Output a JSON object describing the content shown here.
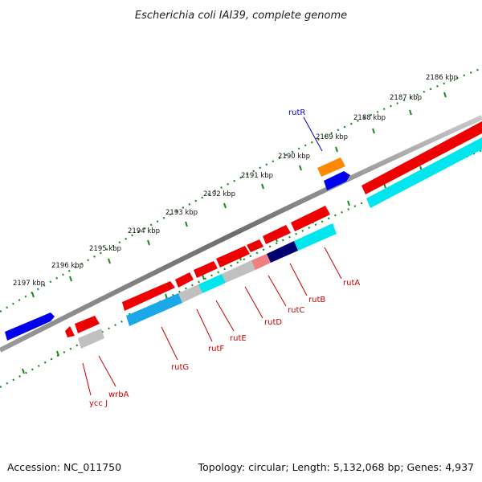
{
  "title": "Escherichia coli IAI39, complete genome",
  "accession_text": "Accession: NC_011750",
  "summary_text": "Topology: circular; Length: 5,132,068 bp; Genes: 4,937",
  "scale_unit": "kbp",
  "scale_ticks": [
    {
      "label": "2186 kbp"
    },
    {
      "label": "2187 kbp"
    },
    {
      "label": "2188 kbp"
    },
    {
      "label": "2189 kbp"
    },
    {
      "label": "2190 kbp"
    },
    {
      "label": "2191 kbp"
    },
    {
      "label": "2192 kbp"
    },
    {
      "label": "2193 kbp"
    },
    {
      "label": "2194 kbp"
    },
    {
      "label": "2195 kbp"
    },
    {
      "label": "2196 kbp"
    },
    {
      "label": "2197 kbp"
    }
  ],
  "gene_labels": [
    {
      "name": "rutR",
      "color": "#0000cc"
    },
    {
      "name": "rutA",
      "color": "#cc0000"
    },
    {
      "name": "rutB",
      "color": "#cc0000"
    },
    {
      "name": "rutC",
      "color": "#cc0000"
    },
    {
      "name": "rutD",
      "color": "#cc0000"
    },
    {
      "name": "rutE",
      "color": "#cc0000"
    },
    {
      "name": "rutF",
      "color": "#cc0000"
    },
    {
      "name": "rutG",
      "color": "#cc0000"
    },
    {
      "name": "wrbA",
      "color": "#cc0000"
    },
    {
      "name": "ycc J",
      "color": "#cc0000"
    }
  ],
  "colors": {
    "backbone": "#7a7a7a",
    "tick_green": "#1a8a1a",
    "cds_forward": "#ee0000",
    "cds_reverse_blue": "#0000ee",
    "cds_orange": "#ff8800",
    "gc_cyan": "#00e5ee",
    "gc_skyblue": "#1aa8e8",
    "gc_gray": "#c0c0c0",
    "gc_pink": "#f08080",
    "gc_navy": "#000070"
  }
}
